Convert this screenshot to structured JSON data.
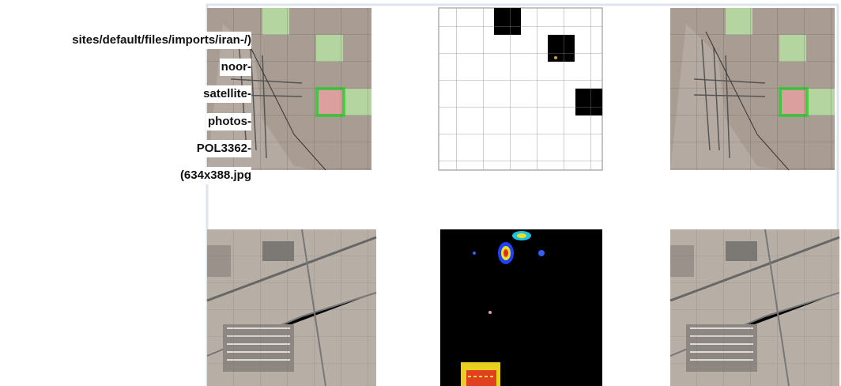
{
  "caption_lines": [
    "sites/default/files/imports/iran-/)",
    "noor-",
    "satellite-",
    "photos-",
    "POL3362-",
    "(634x388.jpg"
  ]
}
